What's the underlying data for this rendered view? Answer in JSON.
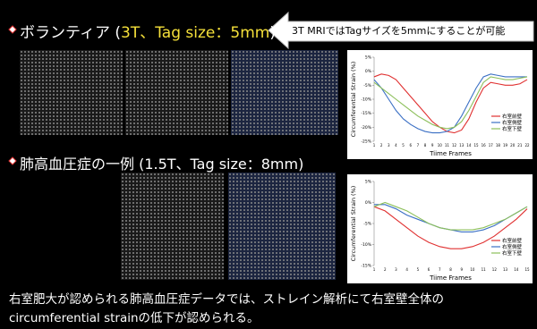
{
  "title1": {
    "prefix": "ボランティア (",
    "highlight": "3T、Tag size：5mm",
    "suffix": ")"
  },
  "callout": "3T MRIではTagサイズを5mmにすることが可能",
  "title2": "肺高血圧症の一例 (1.5T、Tag size：8mm)",
  "caption": [
    "右室肥大が認められる肺高血圧症データでは、ストレイン解析にて右室壁全体の",
    "circumferential strainの低下が認められる。"
  ],
  "charts": [
    {
      "type": "line",
      "y_label": "Circumferential Strain (%)",
      "x_label": "Tiime Frames",
      "x": [
        1,
        2,
        3,
        4,
        5,
        6,
        7,
        8,
        9,
        10,
        11,
        12,
        13,
        14,
        15,
        16,
        17,
        18,
        19,
        20,
        21,
        22
      ],
      "xlim": [
        1,
        22
      ],
      "ylim": [
        -25,
        5
      ],
      "yticks": [
        {
          "value": 5,
          "label": "5%"
        },
        {
          "value": 0,
          "label": "0%"
        },
        {
          "value": -5,
          "label": "-5%"
        },
        {
          "value": -10,
          "label": "-10%"
        },
        {
          "value": -15,
          "label": "-15%"
        },
        {
          "value": -20,
          "label": "-20%"
        },
        {
          "value": -25,
          "label": "-25%"
        }
      ],
      "series": [
        {
          "name": "右室前壁",
          "color": "#e03030",
          "values": [
            -2,
            -1,
            -1.5,
            -3,
            -6,
            -9,
            -12,
            -15,
            -18,
            -20,
            -21.5,
            -22,
            -21,
            -17,
            -11,
            -6,
            -4,
            -4.5,
            -5,
            -5,
            -4.5,
            -3
          ]
        },
        {
          "name": "右室側壁",
          "color": "#3a6fc4",
          "values": [
            -3,
            -6,
            -10,
            -14,
            -17,
            -19,
            -20.5,
            -21.5,
            -22,
            -22,
            -21.5,
            -20,
            -16,
            -11,
            -6,
            -2,
            -1,
            -1.5,
            -2,
            -2,
            -2,
            -2
          ]
        },
        {
          "name": "右室下壁",
          "color": "#8cbf5a",
          "values": [
            -4,
            -6,
            -8,
            -10,
            -12,
            -14,
            -16,
            -17.5,
            -19,
            -20,
            -20.5,
            -20,
            -18,
            -14,
            -9,
            -4,
            -2,
            -2.5,
            -3,
            -3,
            -2.5,
            -2
          ]
        }
      ]
    },
    {
      "type": "line",
      "y_label": "Circumferential Strain (%)",
      "x_label": "Tiime Frames",
      "x": [
        1,
        2,
        3,
        4,
        5,
        6,
        7,
        8,
        9,
        10,
        11,
        12,
        13,
        14,
        15
      ],
      "xlim": [
        1,
        15
      ],
      "ylim": [
        -15,
        5
      ],
      "yticks": [
        {
          "value": 5,
          "label": "5%"
        },
        {
          "value": 0,
          "label": "0%"
        },
        {
          "value": -5,
          "label": "-5%"
        },
        {
          "value": -10,
          "label": "-10%"
        },
        {
          "value": -15,
          "label": "-15%"
        }
      ],
      "series": [
        {
          "name": "右室前壁",
          "color": "#e03030",
          "values": [
            -1,
            -2,
            -4,
            -6,
            -8,
            -9.5,
            -10.5,
            -11,
            -11,
            -10.5,
            -9.5,
            -8,
            -6,
            -4,
            -1.5
          ]
        },
        {
          "name": "右室側壁",
          "color": "#3a6fc4",
          "values": [
            -0.5,
            -0.5,
            -1.5,
            -3,
            -4,
            -5,
            -6,
            -6.5,
            -7,
            -7,
            -6.5,
            -5.5,
            -4,
            -2.5,
            -1
          ]
        },
        {
          "name": "右室下壁",
          "color": "#8cbf5a",
          "values": [
            -1,
            0,
            -1,
            -2,
            -3.5,
            -5,
            -6,
            -6.5,
            -6.5,
            -6.5,
            -6,
            -5,
            -4,
            -2.5,
            -1
          ]
        }
      ]
    }
  ]
}
